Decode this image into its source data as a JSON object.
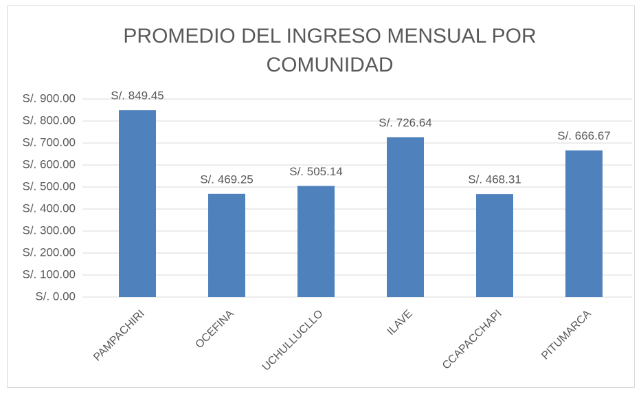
{
  "chart_data": {
    "type": "bar",
    "title": "PROMEDIO DEL INGRESO MENSUAL POR COMUNIDAD",
    "categories": [
      "PAMPACHIRI",
      "OCEFINA",
      "UCHULLUCLLO",
      "ILAVE",
      "CCAPACCHAPI",
      "PITUMARCA"
    ],
    "values": [
      849.45,
      469.25,
      505.14,
      726.64,
      468.31,
      666.67
    ],
    "value_labels": [
      "S/. 849.45",
      "S/. 469.25",
      "S/. 505.14",
      "S/. 726.64",
      "S/. 468.31",
      "S/. 666.67"
    ],
    "color": "#4f81bd",
    "ylim": [
      0,
      900
    ],
    "yticks": [
      {
        "value": 0,
        "label": "S/. 0.00"
      },
      {
        "value": 100,
        "label": "S/. 100.00"
      },
      {
        "value": 200,
        "label": "S/. 200.00"
      },
      {
        "value": 300,
        "label": "S/. 300.00"
      },
      {
        "value": 400,
        "label": "S/. 400.00"
      },
      {
        "value": 500,
        "label": "S/. 500.00"
      },
      {
        "value": 600,
        "label": "S/. 600.00"
      },
      {
        "value": 700,
        "label": "S/. 700.00"
      },
      {
        "value": 800,
        "label": "S/. 800.00"
      },
      {
        "value": 900,
        "label": "S/. 900.00"
      }
    ],
    "grid": true
  }
}
